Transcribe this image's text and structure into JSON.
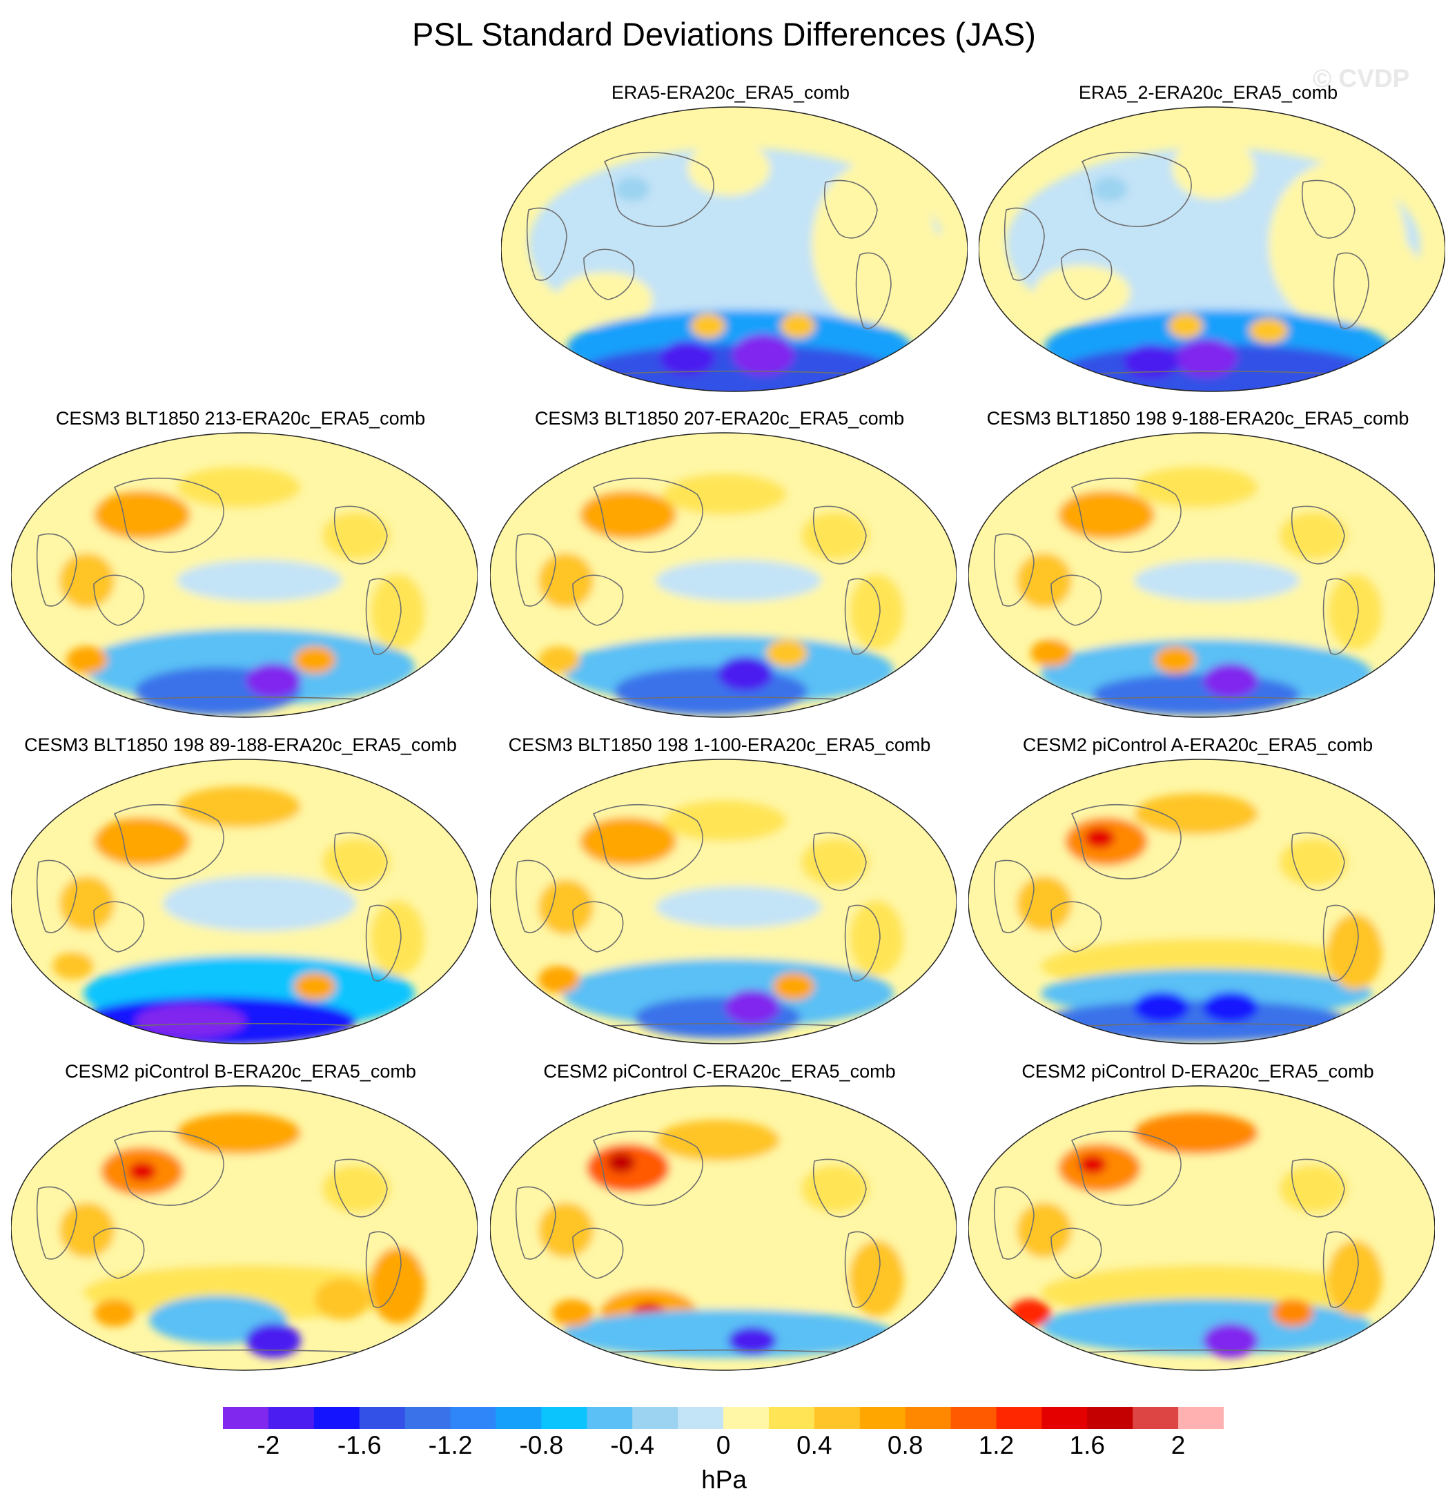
{
  "title": "PSL Standard Deviations Differences (JAS)",
  "watermark": "© CVDP",
  "panels": [
    {
      "label": "ERA5-ERA20c_ERA5_comb",
      "pattern": "reanalysis_a"
    },
    {
      "label": "ERA5_2-ERA20c_ERA5_comb",
      "pattern": "reanalysis_b"
    },
    {
      "label": "CESM3 BLT1850 213-ERA20c_ERA5_comb",
      "pattern": "model_1"
    },
    {
      "label": "CESM3 BLT1850 207-ERA20c_ERA5_comb",
      "pattern": "model_2"
    },
    {
      "label": "CESM3 BLT1850 198 9-188-ERA20c_ERA5_comb",
      "pattern": "model_3"
    },
    {
      "label": "CESM3 BLT1850 198 89-188-ERA20c_ERA5_comb",
      "pattern": "model_4"
    },
    {
      "label": "CESM3 BLT1850 198 1-100-ERA20c_ERA5_comb",
      "pattern": "model_5"
    },
    {
      "label": "CESM2 piControl A-ERA20c_ERA5_comb",
      "pattern": "cesm2_a"
    },
    {
      "label": "CESM2 piControl B-ERA20c_ERA5_comb",
      "pattern": "cesm2_b"
    },
    {
      "label": "CESM2 piControl C-ERA20c_ERA5_comb",
      "pattern": "cesm2_c"
    },
    {
      "label": "CESM2 piControl D-ERA20c_ERA5_comb",
      "pattern": "cesm2_d"
    }
  ],
  "colorbar": {
    "units": "hPa",
    "colors": [
      "#8028ee",
      "#4b1df0",
      "#1414ff",
      "#3351e6",
      "#3a72ea",
      "#2e86f8",
      "#17a0fb",
      "#0bc4fe",
      "#5ac0f5",
      "#9bd3f0",
      "#c3e3f7",
      "#fff7a6",
      "#ffe556",
      "#ffc528",
      "#ffa600",
      "#ff8800",
      "#ff5a00",
      "#ff2700",
      "#e50000",
      "#c40000",
      "#dd4545",
      "#ffb0b0"
    ],
    "ticks": [
      {
        "label": "-2",
        "index": 1
      },
      {
        "label": "-1.6",
        "index": 3
      },
      {
        "label": "-1.2",
        "index": 5
      },
      {
        "label": "-0.8",
        "index": 7
      },
      {
        "label": "-0.4",
        "index": 9
      },
      {
        "label": "0",
        "index": 11
      },
      {
        "label": "0.4",
        "index": 13
      },
      {
        "label": "0.8",
        "index": 15
      },
      {
        "label": "1.2",
        "index": 17
      },
      {
        "label": "1.6",
        "index": 19
      },
      {
        "label": "2",
        "index": 21
      }
    ]
  }
}
